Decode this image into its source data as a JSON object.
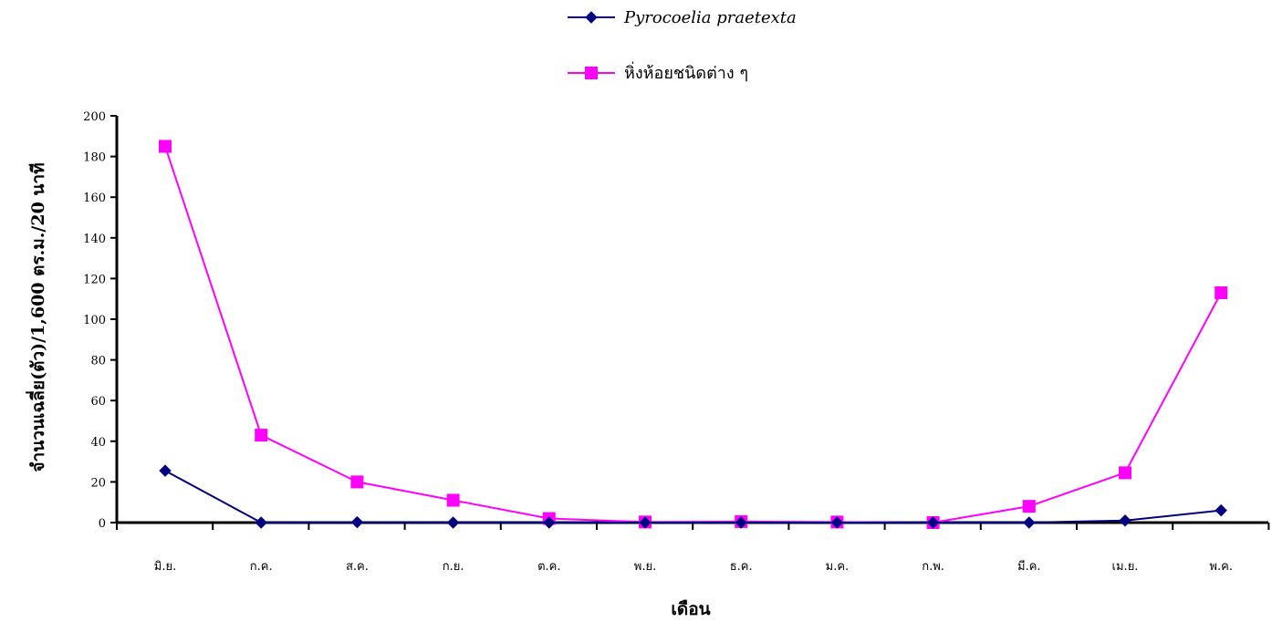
{
  "chart_data": {
    "type": "line",
    "categories": [
      "มิ.ย.",
      "ก.ค.",
      "ส.ค.",
      "ก.ย.",
      "ต.ค.",
      "พ.ย.",
      "ธ.ค.",
      "ม.ค.",
      "ก.พ.",
      "มี.ค.",
      "เม.ย.",
      "พ.ค."
    ],
    "series": [
      {
        "name": "Pyrocoelia praetexta",
        "color": "#000080",
        "marker": "diamond",
        "values": [
          25.5,
          0,
          0.2,
          0,
          0,
          0,
          0,
          0,
          0,
          0,
          1,
          6
        ]
      },
      {
        "name": "หิ่งห้อยชนิดต่าง ๆ",
        "color": "#ff00ff",
        "marker": "square",
        "values": [
          185,
          43,
          20,
          11,
          2,
          0.3,
          0.5,
          0.3,
          0,
          8,
          24.5,
          113
        ]
      }
    ],
    "xlabel": "เดือน",
    "ylabel": "จำนวนเฉลี่ย(ตัว)/1,600 ตร.ม./20 นาที",
    "ylim": [
      0,
      200
    ],
    "yticks": [
      0,
      20,
      40,
      60,
      80,
      100,
      120,
      140,
      160,
      180,
      200
    ],
    "grid": false,
    "legend_position": "top-center"
  }
}
